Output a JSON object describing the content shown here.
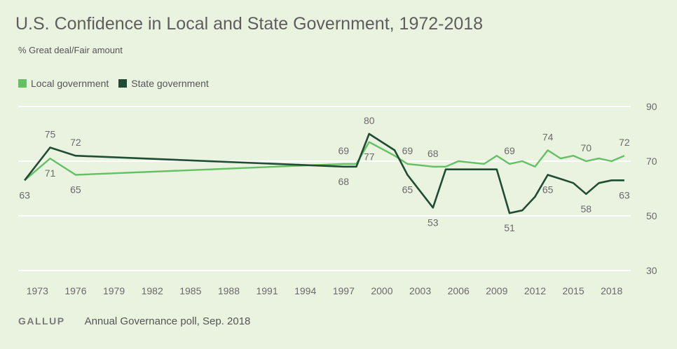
{
  "header": {
    "title": "U.S. Confidence in Local and State Government, 1972-2018",
    "subtitle": "% Great deal/Fair amount"
  },
  "legend": {
    "local_label": "Local government",
    "state_label": "State government"
  },
  "footer": {
    "logo": "GALLUP",
    "source": "Annual Governance poll, Sep. 2018"
  },
  "colors": {
    "local": "#63c163",
    "state": "#1f4d33",
    "grid": "#ffffff",
    "background": "#eaf2e0"
  },
  "chart_data": {
    "type": "line",
    "title": "U.S. Confidence in Local and State Government, 1972-2018",
    "subtitle": "% Great deal/Fair amount",
    "xlim": [
      1971.5,
      2019.5
    ],
    "ylim": [
      30,
      90
    ],
    "yticks": [
      30,
      50,
      70,
      90
    ],
    "xticks": [
      1973,
      1976,
      1979,
      1982,
      1985,
      1988,
      1991,
      1994,
      1997,
      2000,
      2003,
      2006,
      2009,
      2012,
      2015,
      2018
    ],
    "grid": true,
    "legend_position": "top-left",
    "series": [
      {
        "name": "Local government",
        "color": "#63c163",
        "points": [
          [
            1972,
            63
          ],
          [
            1974,
            71
          ],
          [
            1976,
            65
          ],
          [
            1997,
            69
          ],
          [
            1998,
            69
          ],
          [
            1999,
            77
          ],
          [
            2001,
            72
          ],
          [
            2002,
            69
          ],
          [
            2003,
            68.5
          ],
          [
            2004,
            68
          ],
          [
            2005,
            68
          ],
          [
            2006,
            70
          ],
          [
            2007,
            69.5
          ],
          [
            2008,
            69
          ],
          [
            2009,
            72
          ],
          [
            2010,
            69
          ],
          [
            2011,
            70
          ],
          [
            2012,
            68
          ],
          [
            2013,
            74
          ],
          [
            2014,
            71
          ],
          [
            2015,
            72
          ],
          [
            2016,
            70
          ],
          [
            2017,
            71
          ],
          [
            2018,
            70
          ],
          [
            2019,
            72
          ]
        ]
      },
      {
        "name": "State government",
        "color": "#1f4d33",
        "points": [
          [
            1972,
            63
          ],
          [
            1974,
            75
          ],
          [
            1976,
            72
          ],
          [
            1997,
            68
          ],
          [
            1998,
            68
          ],
          [
            1999,
            80
          ],
          [
            2001,
            74
          ],
          [
            2002,
            65
          ],
          [
            2004,
            53
          ],
          [
            2005,
            67
          ],
          [
            2006,
            67
          ],
          [
            2007,
            67
          ],
          [
            2008,
            67
          ],
          [
            2009,
            67
          ],
          [
            2010,
            51
          ],
          [
            2011,
            52
          ],
          [
            2012,
            57
          ],
          [
            2013,
            65
          ],
          [
            2014,
            63.5
          ],
          [
            2015,
            62
          ],
          [
            2016,
            58
          ],
          [
            2017,
            62
          ],
          [
            2018,
            63
          ],
          [
            2019,
            63
          ]
        ]
      }
    ],
    "annotations": [
      {
        "x": 1972,
        "y": 63,
        "text": "63",
        "series": "Local government",
        "pos": "below"
      },
      {
        "x": 1974,
        "y": 75,
        "text": "75",
        "series": "State government",
        "pos": "above"
      },
      {
        "x": 1974,
        "y": 71,
        "text": "71",
        "series": "Local government",
        "pos": "below"
      },
      {
        "x": 1976,
        "y": 72,
        "text": "72",
        "series": "State government",
        "pos": "above"
      },
      {
        "x": 1976,
        "y": 65,
        "text": "65",
        "series": "Local government",
        "pos": "below"
      },
      {
        "x": 1997,
        "y": 69,
        "text": "69",
        "series": "Local government",
        "pos": "above"
      },
      {
        "x": 1997,
        "y": 68,
        "text": "68",
        "series": "State government",
        "pos": "below"
      },
      {
        "x": 1999,
        "y": 80,
        "text": "80",
        "series": "State government",
        "pos": "above"
      },
      {
        "x": 1999,
        "y": 77,
        "text": "77",
        "series": "Local government",
        "pos": "below"
      },
      {
        "x": 2002,
        "y": 69,
        "text": "69",
        "series": "Local government",
        "pos": "above"
      },
      {
        "x": 2002,
        "y": 65,
        "text": "65",
        "series": "State government",
        "pos": "below"
      },
      {
        "x": 2004,
        "y": 68,
        "text": "68",
        "series": "Local government",
        "pos": "above"
      },
      {
        "x": 2004,
        "y": 53,
        "text": "53",
        "series": "State government",
        "pos": "below"
      },
      {
        "x": 2010,
        "y": 69,
        "text": "69",
        "series": "Local government",
        "pos": "above"
      },
      {
        "x": 2010,
        "y": 51,
        "text": "51",
        "series": "State government",
        "pos": "below"
      },
      {
        "x": 2013,
        "y": 74,
        "text": "74",
        "series": "Local government",
        "pos": "above"
      },
      {
        "x": 2013,
        "y": 65,
        "text": "65",
        "series": "State government",
        "pos": "below"
      },
      {
        "x": 2016,
        "y": 70,
        "text": "70",
        "series": "Local government",
        "pos": "above"
      },
      {
        "x": 2016,
        "y": 58,
        "text": "58",
        "series": "State government",
        "pos": "below"
      },
      {
        "x": 2019,
        "y": 72,
        "text": "72",
        "series": "Local government",
        "pos": "above"
      },
      {
        "x": 2019,
        "y": 63,
        "text": "63",
        "series": "State government",
        "pos": "below"
      }
    ]
  }
}
